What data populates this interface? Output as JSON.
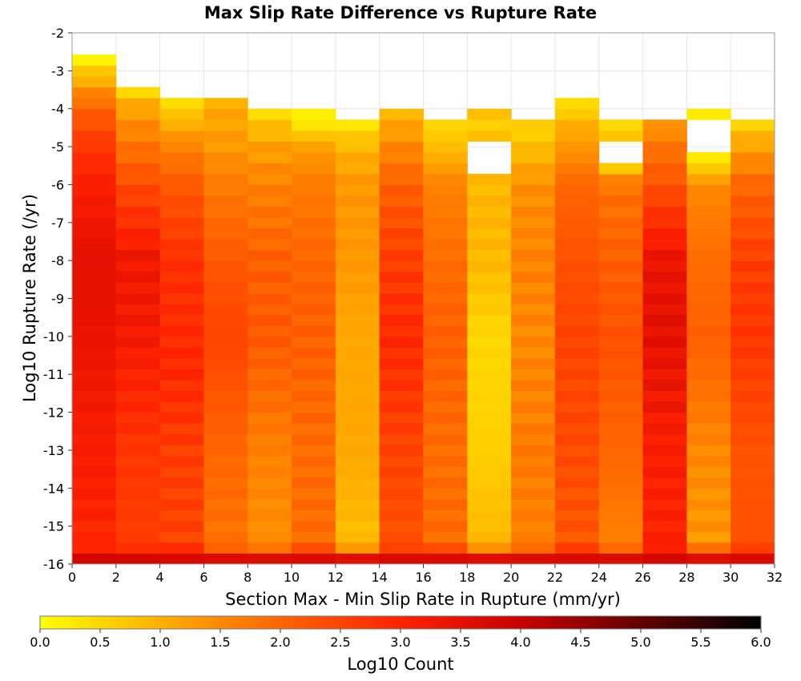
{
  "chart_data": {
    "type": "heatmap",
    "title": "Max Slip Rate Difference vs Rupture Rate",
    "xlabel": "Section Max - Min Slip Rate in Rupture (mm/yr)",
    "ylabel": "Log10 Rupture Rate (/yr)",
    "xlim": [
      0,
      32
    ],
    "ylim": [
      -16,
      -2
    ],
    "x_ticks": [
      "0",
      "2",
      "4",
      "6",
      "8",
      "10",
      "12",
      "14",
      "16",
      "18",
      "20",
      "22",
      "24",
      "26",
      "28",
      "30",
      "32"
    ],
    "y_ticks": [
      "-16",
      "-15",
      "-14",
      "-13",
      "-12",
      "-11",
      "-10",
      "-9",
      "-8",
      "-7",
      "-6",
      "-5",
      "-4",
      "-3",
      "-2"
    ],
    "x_bin_width": 2,
    "y_bin_height": 0.2857,
    "colorbar": {
      "label": "Log10 Count",
      "range": [
        0.0,
        6.0
      ],
      "ticks": [
        "0.0",
        "0.5",
        "1.0",
        "1.5",
        "2.0",
        "2.5",
        "3.0",
        "3.5",
        "4.0",
        "4.5",
        "5.0",
        "5.5",
        "6.0"
      ],
      "colors": [
        "#ffff00",
        "#ff8800",
        "#ff2200",
        "#c80000",
        "#000000"
      ]
    },
    "columns": [
      {
        "x": 1,
        "profile": [
          [
            -15.9,
            3.9
          ],
          [
            -15.5,
            2.9
          ],
          [
            -14,
            3.1
          ],
          [
            -12,
            3.2
          ],
          [
            -10,
            3.4
          ],
          [
            -8,
            3.5
          ],
          [
            -6,
            3.1
          ],
          [
            -5,
            2.7
          ],
          [
            -4,
            2.1
          ],
          [
            -3.3,
            1.1
          ],
          [
            -2.7,
            0.2
          ]
        ],
        "top": -2.7
      },
      {
        "x": 3,
        "profile": [
          [
            -15.9,
            3.9
          ],
          [
            -15.5,
            2.6
          ],
          [
            -13,
            2.7
          ],
          [
            -10,
            3.2
          ],
          [
            -8,
            3.3
          ],
          [
            -6,
            2.4
          ],
          [
            -5,
            1.8
          ],
          [
            -4,
            1.2
          ],
          [
            -3.3,
            0.2
          ]
        ],
        "top": -3.3
      },
      {
        "x": 5,
        "profile": [
          [
            -15.9,
            3.9
          ],
          [
            -15.5,
            2.5
          ],
          [
            -13,
            2.6
          ],
          [
            -11,
            2.9
          ],
          [
            -8,
            2.8
          ],
          [
            -6,
            2.2
          ],
          [
            -5,
            1.6
          ],
          [
            -4.2,
            0.8
          ],
          [
            -3.6,
            0.2
          ]
        ],
        "top": -3.6
      },
      {
        "x": 7,
        "profile": [
          [
            -15.9,
            3.9
          ],
          [
            -15.5,
            1.8
          ],
          [
            -13,
            2.0
          ],
          [
            -10,
            2.5
          ],
          [
            -8,
            2.2
          ],
          [
            -6,
            1.7
          ],
          [
            -5,
            1.3
          ],
          [
            -4,
            1.1
          ],
          [
            -3.6,
            0.9
          ]
        ],
        "top": -3.6
      },
      {
        "x": 9,
        "profile": [
          [
            -15.9,
            3.9
          ],
          [
            -15.5,
            1.4
          ],
          [
            -13,
            1.6
          ],
          [
            -10,
            2.2
          ],
          [
            -8,
            2.1
          ],
          [
            -6,
            1.6
          ],
          [
            -5,
            1.2
          ],
          [
            -4.2,
            0.6
          ],
          [
            -3.9,
            0.2
          ]
        ],
        "top": -3.9
      },
      {
        "x": 11,
        "profile": [
          [
            -15.9,
            3.9
          ],
          [
            -15.5,
            1.9
          ],
          [
            -13,
            1.9
          ],
          [
            -10,
            2.1
          ],
          [
            -8,
            2.0
          ],
          [
            -6,
            1.7
          ],
          [
            -5,
            1.2
          ],
          [
            -4.4,
            0.3
          ],
          [
            -3.9,
            0.1
          ]
        ],
        "top": -3.9
      },
      {
        "x": 13,
        "profile": [
          [
            -15.9,
            3.9
          ],
          [
            -15.5,
            0.8
          ],
          [
            -13,
            1.1
          ],
          [
            -10,
            1.1
          ],
          [
            -8,
            1.3
          ],
          [
            -6,
            1.3
          ],
          [
            -5,
            0.9
          ],
          [
            -4.2,
            0.2
          ]
        ],
        "top": -4.2
      },
      {
        "x": 15,
        "profile": [
          [
            -15.9,
            3.9
          ],
          [
            -15.5,
            2.3
          ],
          [
            -13,
            2.5
          ],
          [
            -10,
            2.9
          ],
          [
            -8,
            2.6
          ],
          [
            -6,
            2.1
          ],
          [
            -5,
            1.5
          ],
          [
            -4,
            0.9
          ],
          [
            -3.9,
            0.6
          ]
        ],
        "top": -3.9
      },
      {
        "x": 17,
        "profile": [
          [
            -15.9,
            3.9
          ],
          [
            -15.5,
            1.9
          ],
          [
            -13,
            1.9
          ],
          [
            -10,
            2.1
          ],
          [
            -8,
            1.9
          ],
          [
            -6,
            1.6
          ],
          [
            -5,
            0.8
          ],
          [
            -4.2,
            0.4
          ]
        ],
        "top": -4.2
      },
      {
        "x": 19,
        "profile": [
          [
            -15.9,
            3.9
          ],
          [
            -15.5,
            0.9
          ],
          [
            -13,
            0.6
          ],
          [
            -10,
            0.5
          ],
          [
            -8,
            0.9
          ],
          [
            -6,
            0.9
          ],
          [
            -5.6,
            0.7
          ]
        ],
        "top": -3.9,
        "gaps": [
          [
            -5.6,
            -5.0
          ],
          [
            -4.2,
            -4.4
          ]
        ]
      },
      {
        "x": 21,
        "profile": [
          [
            -15.9,
            3.9
          ],
          [
            -15.5,
            1.6
          ],
          [
            -13,
            1.7
          ],
          [
            -10,
            1.5
          ],
          [
            -8,
            1.6
          ],
          [
            -6,
            1.4
          ],
          [
            -5,
            0.8
          ],
          [
            -4.2,
            0.5
          ]
        ],
        "top": -4.2
      },
      {
        "x": 23,
        "profile": [
          [
            -15.9,
            3.9
          ],
          [
            -15.5,
            2.2
          ],
          [
            -13,
            2.4
          ],
          [
            -10,
            2.5
          ],
          [
            -8,
            2.3
          ],
          [
            -6,
            2.0
          ],
          [
            -5,
            1.3
          ],
          [
            -4.4,
            1.0
          ],
          [
            -3.9,
            0.4
          ]
        ],
        "top": -3.6,
        "gaps": [
          [
            -4.4,
            -4.2
          ]
        ]
      },
      {
        "x": 25,
        "profile": [
          [
            -15.9,
            3.9
          ],
          [
            -15.5,
            1.6
          ],
          [
            -13,
            2.0
          ],
          [
            -10,
            2.3
          ],
          [
            -8,
            2.1
          ],
          [
            -6,
            1.8
          ],
          [
            -5.5,
            0.6
          ]
        ],
        "top": -4.4,
        "gaps": [
          [
            -5.3,
            -5.0
          ]
        ]
      },
      {
        "x": 27,
        "profile": [
          [
            -15.9,
            3.9
          ],
          [
            -15.5,
            3.0
          ],
          [
            -13,
            3.1
          ],
          [
            -10,
            3.5
          ],
          [
            -8,
            3.4
          ],
          [
            -6,
            2.3
          ],
          [
            -5,
            1.8
          ],
          [
            -4.4,
            1.3
          ]
        ],
        "top": -4.4
      },
      {
        "x": 29,
        "profile": [
          [
            -15.9,
            3.9
          ],
          [
            -15.5,
            1.3
          ],
          [
            -13,
            1.5
          ],
          [
            -10,
            2.1
          ],
          [
            -8,
            1.9
          ],
          [
            -6,
            1.5
          ],
          [
            -5.4,
            0.3
          ]
        ],
        "top": -4.1,
        "gaps": [
          [
            -5.2,
            -4.4
          ]
        ]
      },
      {
        "x": 31,
        "profile": [
          [
            -15.9,
            3.9
          ],
          [
            -15.5,
            2.3
          ],
          [
            -13,
            2.3
          ],
          [
            -10,
            2.7
          ],
          [
            -8,
            2.6
          ],
          [
            -6,
            2.0
          ],
          [
            -5,
            1.2
          ],
          [
            -4.4,
            0.6
          ]
        ],
        "top": -4.4
      }
    ]
  }
}
